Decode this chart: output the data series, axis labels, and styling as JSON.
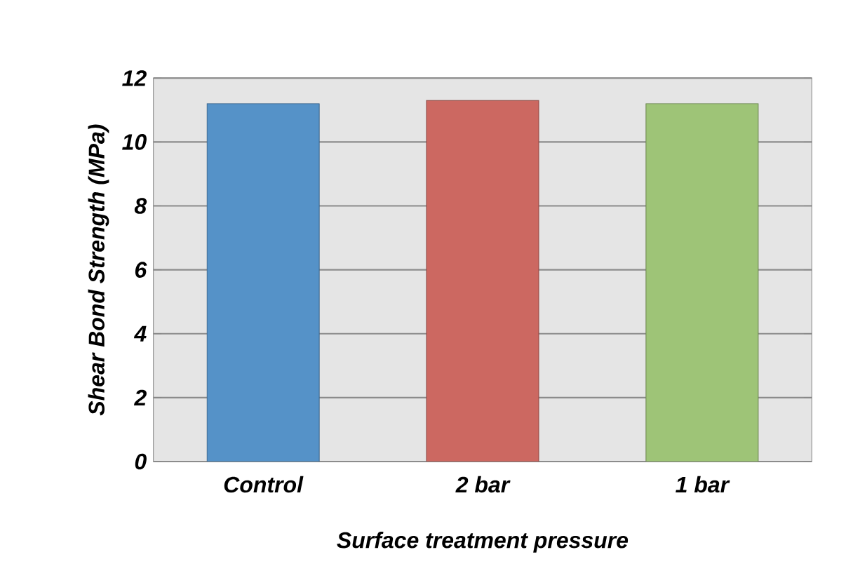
{
  "chart_data": {
    "type": "bar",
    "xlabel": "Surface treatment pressure",
    "ylabel": "Shear Bond Strength (MPa)",
    "categories": [
      "Control",
      "2 bar",
      "1 bar"
    ],
    "values": [
      11.2,
      11.3,
      11.2
    ],
    "colors": [
      "#5592c8",
      "#cc6861",
      "#9ec477"
    ],
    "ylim": [
      0,
      12
    ],
    "yticks": [
      0,
      2,
      4,
      6,
      8,
      10,
      12
    ],
    "grid": "y"
  }
}
